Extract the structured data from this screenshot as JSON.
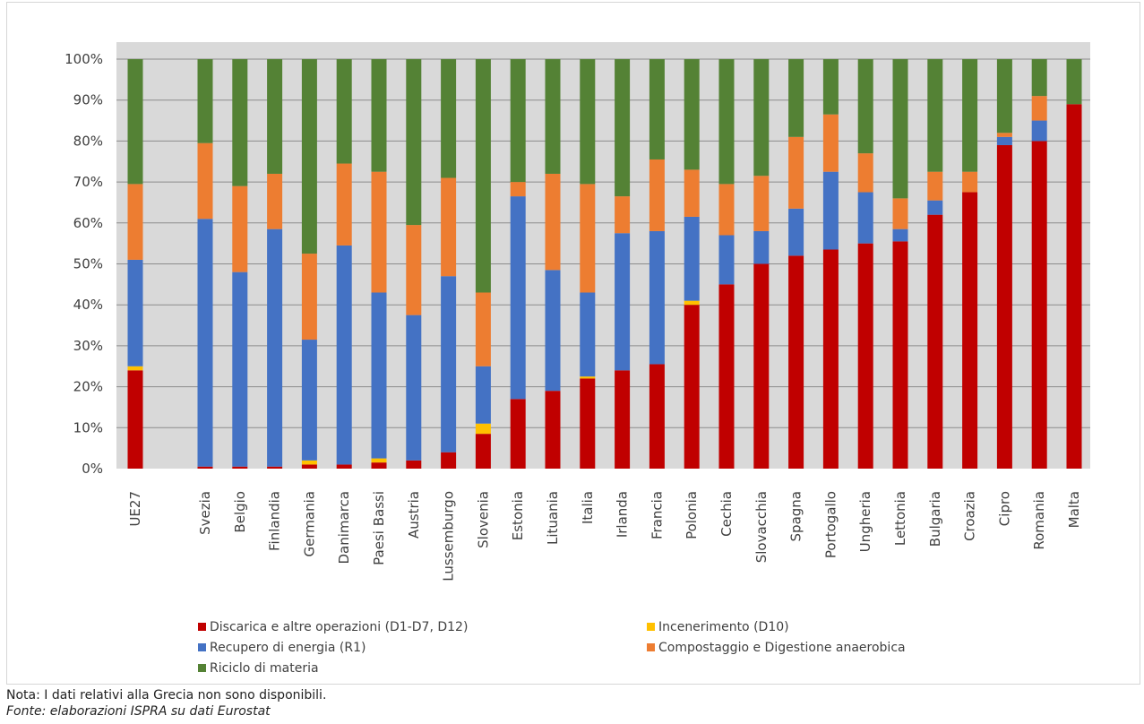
{
  "chart_data": {
    "type": "bar",
    "stacked": true,
    "percent": true,
    "y_ticks": [
      "0%",
      "10%",
      "20%",
      "30%",
      "40%",
      "50%",
      "60%",
      "70%",
      "80%",
      "90%",
      "100%"
    ],
    "ylim": [
      0,
      100
    ],
    "grid": true,
    "legend_position": "bottom",
    "categories": [
      "UE27",
      "Svezia",
      "Belgio",
      "Finlandia",
      "Germania",
      "Danimarca",
      "Paesi Bassi",
      "Austria",
      "Lussemburgo",
      "Slovenia",
      "Estonia",
      "Lituania",
      "Italia",
      "Irlanda",
      "Francia",
      "Polonia",
      "Cechia",
      "Slovacchia",
      "Spagna",
      "Portogallo",
      "Ungheria",
      "Lettonia",
      "Bulgaria",
      "Croazia",
      "Cipro",
      "Romania",
      "Malta"
    ],
    "series": [
      {
        "name": "Discarica e altre operazioni (D1-D7, D12)",
        "color": "#c00000",
        "values": [
          24,
          0.5,
          0.5,
          0.5,
          1,
          1,
          1.5,
          2,
          4,
          8.5,
          17,
          19,
          22,
          24,
          25.5,
          40,
          45,
          50,
          52,
          53.5,
          55,
          55.5,
          62,
          67.5,
          79,
          80,
          89
        ]
      },
      {
        "name": "Incenerimento (D10)",
        "color": "#ffc000",
        "values": [
          1,
          0,
          0,
          0,
          1,
          0,
          1,
          0,
          0,
          2.5,
          0,
          0,
          0.5,
          0,
          0,
          1,
          0,
          0,
          0,
          0,
          0,
          0,
          0,
          0,
          0,
          0,
          0
        ]
      },
      {
        "name": "Recupero di energia (R1)",
        "color": "#4472c4",
        "values": [
          26,
          60.5,
          47.5,
          58,
          29.5,
          53.5,
          40.5,
          35.5,
          43,
          14,
          49.5,
          29.5,
          20.5,
          33.5,
          32.5,
          20.5,
          12,
          8,
          11.5,
          19,
          12.5,
          3,
          3.5,
          0,
          2,
          5,
          0
        ]
      },
      {
        "name": "Compostaggio e Digestione anaerobica",
        "color": "#ed7d31",
        "values": [
          18.5,
          18.5,
          21,
          13.5,
          21,
          20,
          29.5,
          22,
          24,
          18,
          3.5,
          23.5,
          26.5,
          9,
          17.5,
          11.5,
          12.5,
          13.5,
          17.5,
          14,
          9.5,
          7.5,
          7,
          5,
          1,
          6,
          0
        ]
      },
      {
        "name": "Riciclo di materia",
        "color": "#548235",
        "values": [
          30.5,
          20.5,
          31,
          28,
          47.5,
          25.5,
          27.5,
          40.5,
          29,
          57,
          30,
          28,
          30.5,
          33.5,
          24.5,
          27,
          30.5,
          28.5,
          19,
          13.5,
          23,
          34,
          27.5,
          27.5,
          18,
          9,
          11
        ]
      }
    ]
  },
  "legend_items": [
    {
      "label": "Discarica e altre operazioni (D1-D7, D12)",
      "color": "#c00000"
    },
    {
      "label": "Incenerimento (D10)",
      "color": "#ffc000"
    },
    {
      "label": "Recupero di energia (R1)",
      "color": "#4472c4"
    },
    {
      "label": "Compostaggio e Digestione anaerobica",
      "color": "#ed7d31"
    },
    {
      "label": "Riciclo di materia",
      "color": "#548235"
    }
  ],
  "colors": {
    "plot_background": "#d9d9d9",
    "gridline": "#8c8c8c"
  },
  "footer": {
    "note": "Nota: I dati relativi alla Grecia non sono disponibili.",
    "source": "Fonte: elaborazioni ISPRA su dati Eurostat"
  }
}
